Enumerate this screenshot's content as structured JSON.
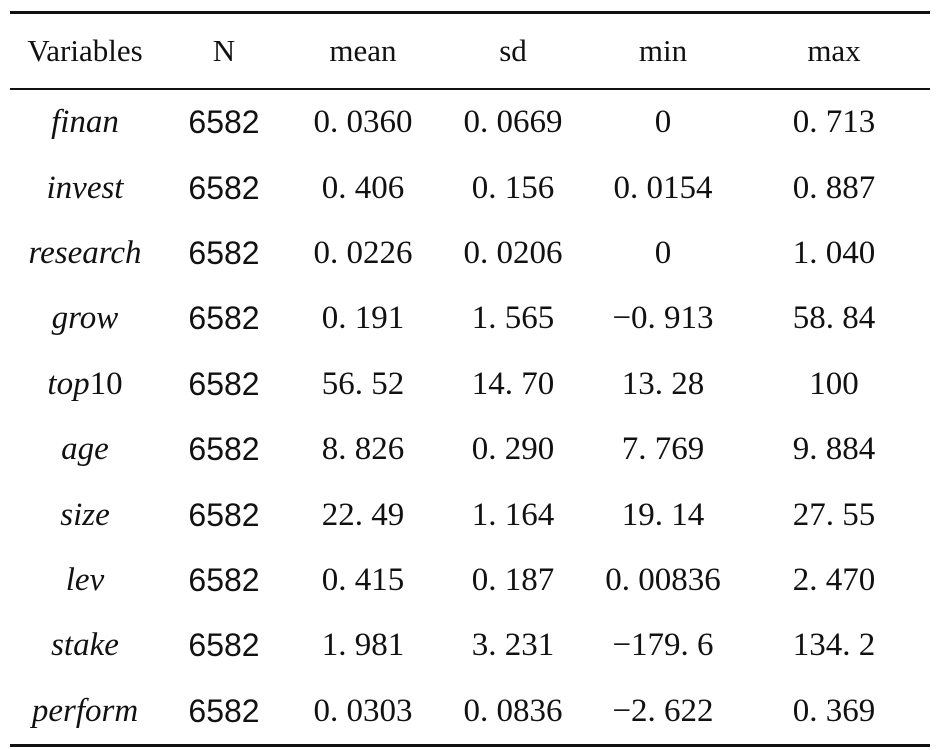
{
  "table": {
    "headers": [
      "Variables",
      "N",
      "mean",
      "sd",
      "min",
      "max"
    ],
    "rows": [
      {
        "var": "finan",
        "var_suffix": "",
        "n": "6582",
        "mean": "0. 0360",
        "sd": "0. 0669",
        "min": "0",
        "max": "0. 713"
      },
      {
        "var": "invest",
        "var_suffix": "",
        "n": "6582",
        "mean": "0. 406",
        "sd": "0. 156",
        "min": "0. 0154",
        "max": "0. 887"
      },
      {
        "var": "research",
        "var_suffix": "",
        "n": "6582",
        "mean": "0. 0226",
        "sd": "0. 0206",
        "min": "0",
        "max": "1. 040"
      },
      {
        "var": "grow",
        "var_suffix": "",
        "n": "6582",
        "mean": "0. 191",
        "sd": "1. 565",
        "min": "−0. 913",
        "max": "58. 84"
      },
      {
        "var": "top",
        "var_suffix": "10",
        "n": "6582",
        "mean": "56. 52",
        "sd": "14. 70",
        "min": "13. 28",
        "max": "100"
      },
      {
        "var": "age",
        "var_suffix": "",
        "n": "6582",
        "mean": "8. 826",
        "sd": "0. 290",
        "min": "7. 769",
        "max": "9. 884"
      },
      {
        "var": "size",
        "var_suffix": "",
        "n": "6582",
        "mean": "22. 49",
        "sd": "1. 164",
        "min": "19. 14",
        "max": "27. 55"
      },
      {
        "var": "lev",
        "var_suffix": "",
        "n": "6582",
        "mean": "0. 415",
        "sd": "0. 187",
        "min": "0. 00836",
        "max": "2. 470"
      },
      {
        "var": "stake",
        "var_suffix": "",
        "n": "6582",
        "mean": "1. 981",
        "sd": "3. 231",
        "min": "−179. 6",
        "max": "134. 2"
      },
      {
        "var": "perform",
        "var_suffix": "",
        "n": "6582",
        "mean": "0. 0303",
        "sd": "0. 0836",
        "min": "−2. 622",
        "max": "0. 369"
      }
    ]
  }
}
